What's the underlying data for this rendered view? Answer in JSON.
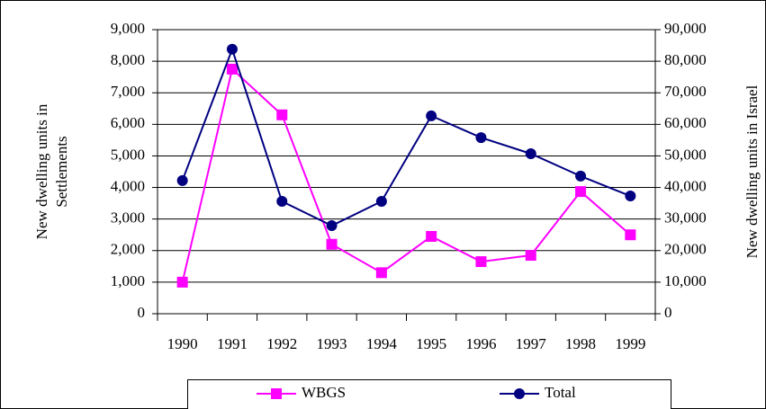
{
  "chart_data": {
    "type": "line",
    "ylabel": [
      "New dwelling units in",
      "Settlements"
    ],
    "y2label": "New dwelling units in Israel",
    "categories": [
      "1990",
      "1991",
      "1992",
      "1993",
      "1994",
      "1995",
      "1996",
      "1997",
      "1998",
      "1999"
    ],
    "series": [
      {
        "name": "WBGS",
        "color": "#ff00ff",
        "marker": "square",
        "values": [
          1000,
          7750,
          6300,
          2200,
          1300,
          2450,
          1650,
          1850,
          3870,
          2500
        ]
      },
      {
        "name": "Total",
        "color": "#000080",
        "marker": "circle",
        "axis": "y2",
        "values": [
          42200,
          83800,
          35600,
          27900,
          35600,
          62700,
          55800,
          50700,
          43600,
          37300
        ]
      }
    ],
    "ylim": [
      0,
      9000
    ],
    "yticks": [
      {
        "value": 0,
        "label": "0"
      },
      {
        "value": 1000,
        "label": "1,000"
      },
      {
        "value": 2000,
        "label": "2,000"
      },
      {
        "value": 3000,
        "label": "3,000"
      },
      {
        "value": 4000,
        "label": "4,000"
      },
      {
        "value": 5000,
        "label": "5,000"
      },
      {
        "value": 6000,
        "label": "6,000"
      },
      {
        "value": 7000,
        "label": "7,000"
      },
      {
        "value": 8000,
        "label": "8,000"
      },
      {
        "value": 9000,
        "label": "9,000"
      }
    ],
    "y2lim": [
      0,
      90000
    ],
    "y2ticks": [
      {
        "value": 0,
        "label": "0"
      },
      {
        "value": 10000,
        "label": "10,000"
      },
      {
        "value": 20000,
        "label": "20,000"
      },
      {
        "value": 30000,
        "label": "30,000"
      },
      {
        "value": 40000,
        "label": "40,000"
      },
      {
        "value": 50000,
        "label": "50,000"
      },
      {
        "value": 60000,
        "label": "60,000"
      },
      {
        "value": 70000,
        "label": "70,000"
      },
      {
        "value": 80000,
        "label": "80,000"
      },
      {
        "value": 90000,
        "label": "90,000"
      }
    ],
    "grid": true,
    "legend": "bottom"
  }
}
